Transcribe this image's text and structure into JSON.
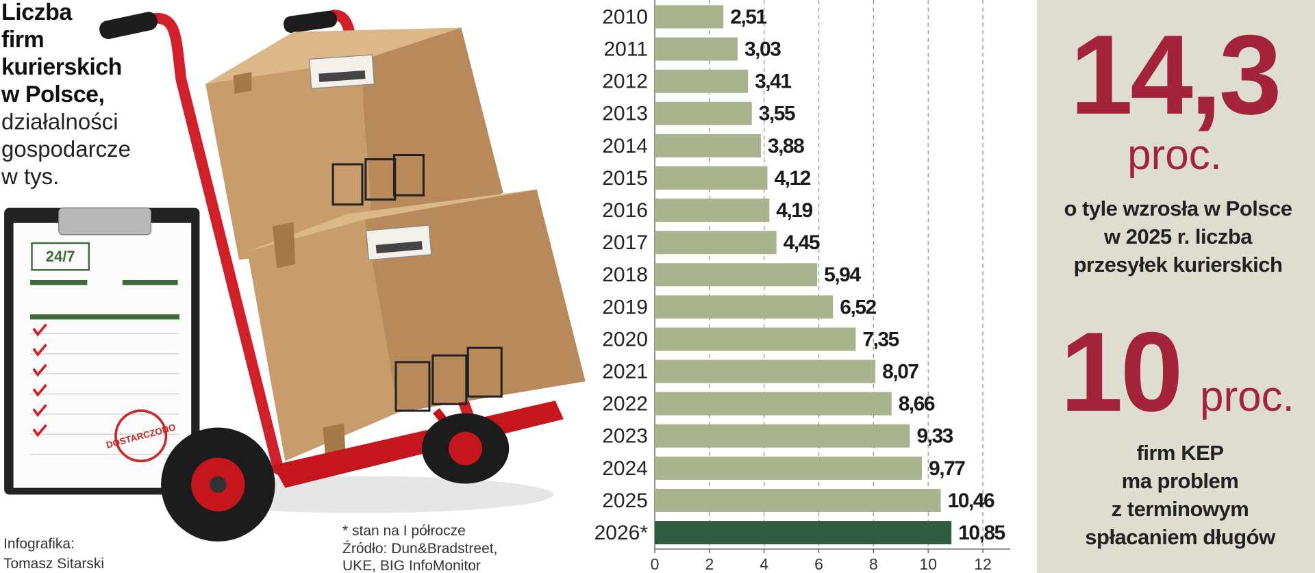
{
  "chart_data": {
    "type": "bar",
    "orientation": "horizontal",
    "title": [
      "Liczba",
      "firm",
      "kurierskich",
      "w Polsce,"
    ],
    "subtitle": [
      "działalności",
      "gospodarcze",
      "w tys."
    ],
    "categories": [
      "2010",
      "2011",
      "2012",
      "2013",
      "2014",
      "2015",
      "2016",
      "2017",
      "2018",
      "2019",
      "2020",
      "2021",
      "2022",
      "2023",
      "2024",
      "2025",
      "2026*"
    ],
    "values": [
      2.51,
      3.03,
      3.41,
      3.55,
      3.88,
      4.12,
      4.19,
      4.45,
      5.94,
      6.52,
      7.35,
      8.07,
      8.66,
      9.33,
      9.77,
      10.46,
      10.85
    ],
    "value_labels": [
      "2,51",
      "3,03",
      "3,41",
      "3,55",
      "3,88",
      "4,12",
      "4,19",
      "4,45",
      "5,94",
      "6,52",
      "7,35",
      "8,07",
      "8,66",
      "9,33",
      "9,77",
      "10,46",
      "10,85"
    ],
    "colors": [
      "#a9b38d",
      "#a9b38d",
      "#a9b38d",
      "#a9b38d",
      "#a9b38d",
      "#a9b38d",
      "#a9b38d",
      "#a9b38d",
      "#a9b38d",
      "#a9b38d",
      "#a9b38d",
      "#a9b38d",
      "#a9b38d",
      "#a9b38d",
      "#a9b38d",
      "#a9b38d",
      "#2f5b3e"
    ],
    "xlim": [
      0,
      13
    ],
    "xticks": [
      0,
      2,
      4,
      6,
      8,
      10,
      12
    ],
    "grid": true,
    "note": "* stan na I półrocze",
    "source": [
      "Źródło: Dun&Bradstreet,",
      "UKE, BIG InfoMonitor"
    ],
    "credit": [
      "Infografika:",
      "Tomasz Sitarski"
    ]
  },
  "illustration": {
    "badge": "24/7",
    "stamp": "DOSTARCZONO"
  },
  "stats": [
    {
      "value": "14,3",
      "unit": "proc.",
      "text": [
        "o tyle wzrosła w Polsce",
        "w 2025 r. liczba",
        "przesyłek kurierskich"
      ]
    },
    {
      "value": "10",
      "unit": "proc.",
      "text": [
        "firm KEP",
        "ma problem",
        "z terminowym",
        "spłacaniem długów"
      ]
    }
  ]
}
